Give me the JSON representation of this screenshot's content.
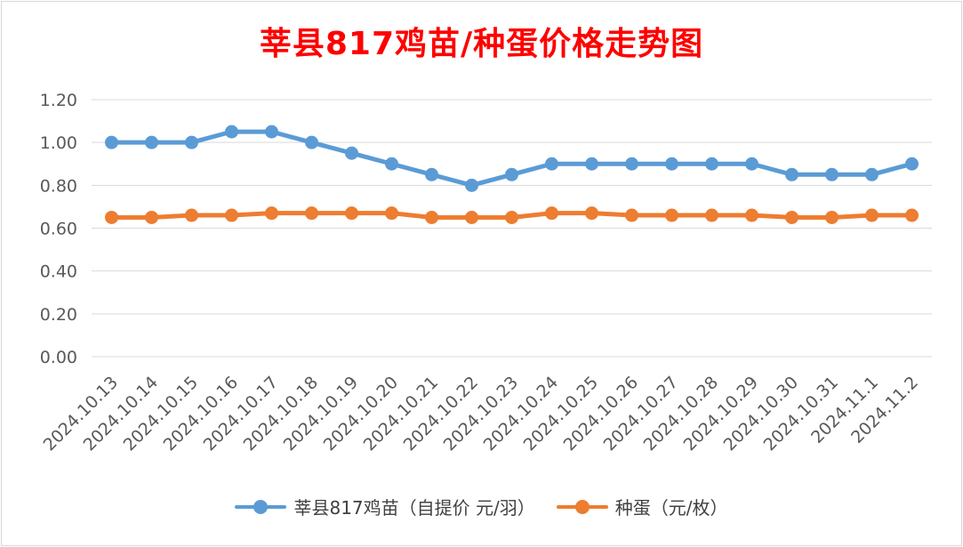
{
  "chart_data": {
    "type": "line",
    "title": "莘县817鸡苗/种蛋价格走势图",
    "categories": [
      "2024.10.13",
      "2024.10.14",
      "2024.10.15",
      "2024.10.16",
      "2024.10.17",
      "2024.10.18",
      "2024.10.19",
      "2024.10.20",
      "2024.10.21",
      "2024.10.22",
      "2024.10.23",
      "2024.10.24",
      "2024.10.25",
      "2024.10.26",
      "2024.10.27",
      "2024.10.28",
      "2024.10.29",
      "2024.10.30",
      "2024.10.31",
      "2024.11.1",
      "2024.11.2"
    ],
    "series": [
      {
        "name": "莘县817鸡苗（自提价 元/羽）",
        "color": "#5b9bd5",
        "values": [
          1.0,
          1.0,
          1.0,
          1.05,
          1.05,
          1.0,
          0.95,
          0.9,
          0.85,
          0.8,
          0.85,
          0.9,
          0.9,
          0.9,
          0.9,
          0.9,
          0.9,
          0.85,
          0.85,
          0.85,
          0.9
        ]
      },
      {
        "name": "种蛋（元/枚）",
        "color": "#ed7d31",
        "values": [
          0.65,
          0.65,
          0.66,
          0.66,
          0.67,
          0.67,
          0.67,
          0.67,
          0.65,
          0.65,
          0.65,
          0.67,
          0.67,
          0.66,
          0.66,
          0.66,
          0.66,
          0.65,
          0.65,
          0.66,
          0.66
        ]
      }
    ],
    "yticks": [
      "0.00",
      "0.20",
      "0.40",
      "0.60",
      "0.80",
      "1.00",
      "1.20"
    ],
    "ylim": [
      0,
      1.2
    ],
    "grid": true,
    "legend_position": "bottom"
  }
}
